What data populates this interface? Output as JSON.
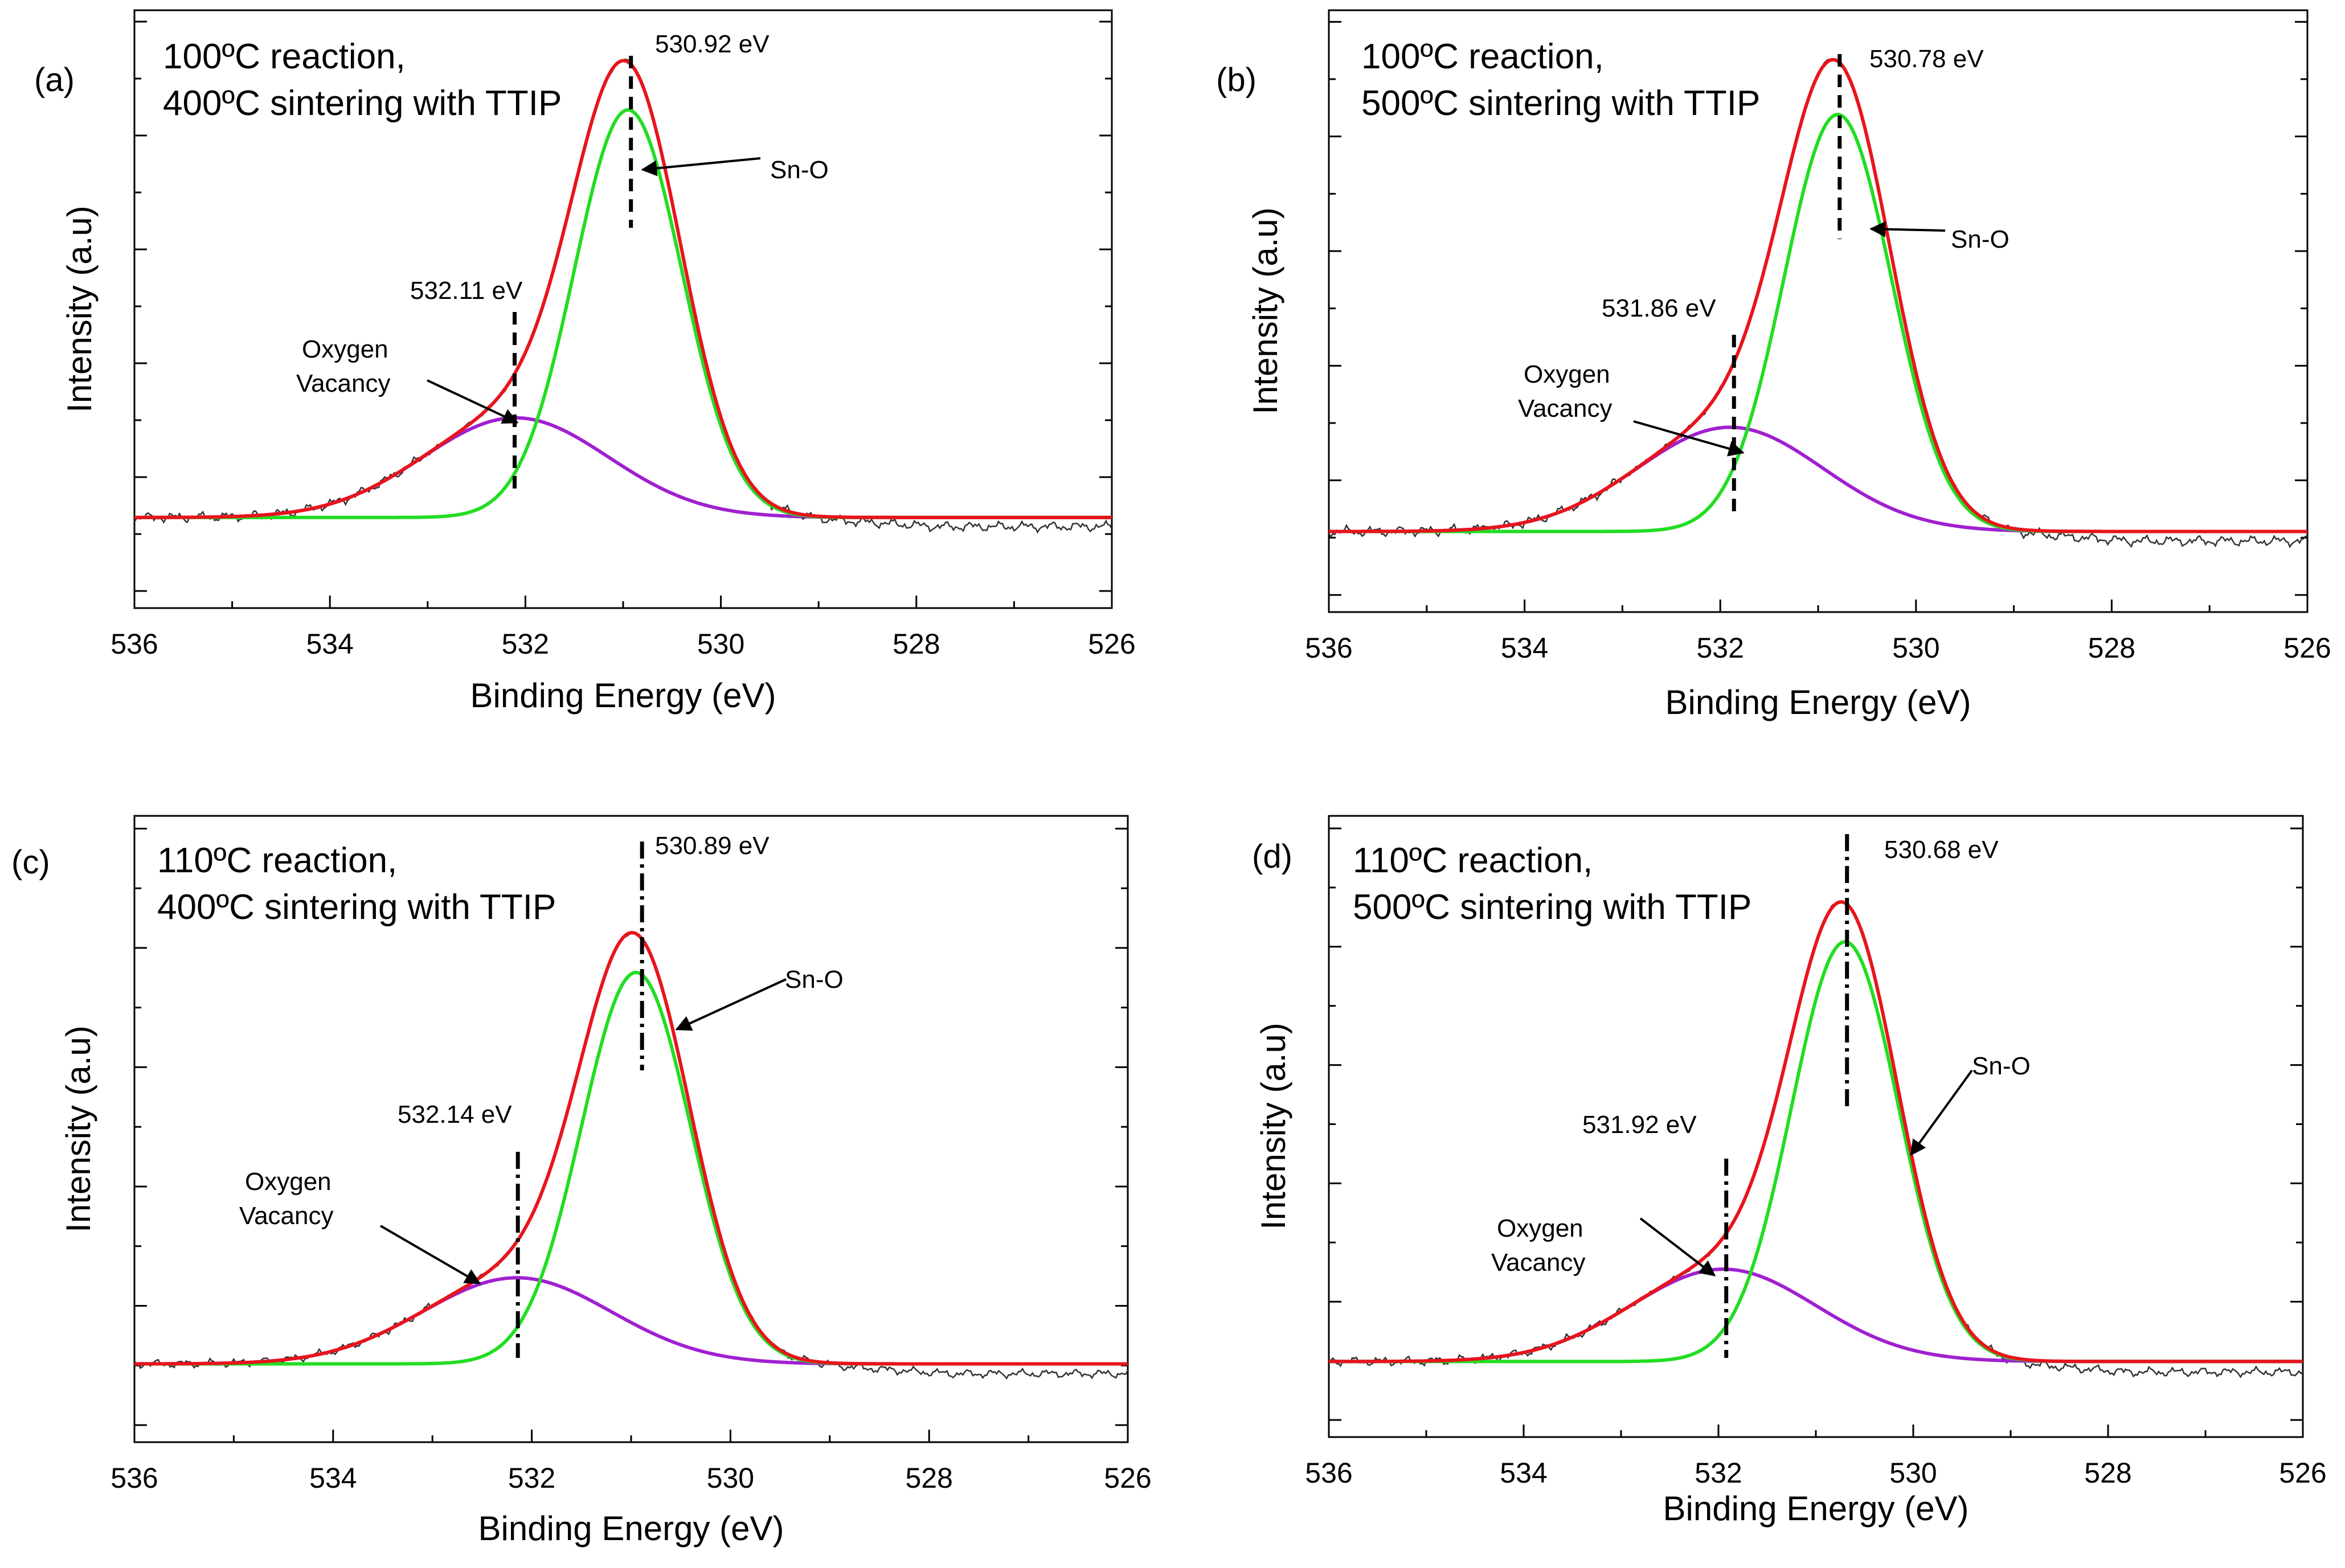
{
  "figure": {
    "colors": {
      "raw": "#333333",
      "envelope": "#e8141c",
      "sn_o": "#22dd22",
      "vacancy": "#a020d0",
      "marker": "#000000"
    }
  },
  "chart_data": [
    {
      "type": "line",
      "panel_label": "(a)",
      "condition_line1": "100ºC reaction,",
      "condition_line2": "400ºC sintering  with TTIP",
      "xlabel": "Binding Energy (eV)",
      "ylabel": "Intensity (a.u)",
      "xlim": [
        536,
        526
      ],
      "xticks": [
        "536",
        "534",
        "532",
        "530",
        "528",
        "526"
      ],
      "ylim": [
        -0.2,
        1.12
      ],
      "sn_o": {
        "label": "Sn-O",
        "center": 530.95,
        "amplitude": 0.9,
        "sigma": 0.55
      },
      "vacancy": {
        "label_line1": "Oxygen",
        "label_line2": "Vacancy",
        "center": 532.1,
        "amplitude": 0.22,
        "sigma": 0.95
      },
      "noise_tail": -0.02,
      "peak_marker": {
        "value": 530.92,
        "label": "530.92 eV",
        "style": "dashed"
      },
      "vacancy_marker": {
        "value": 532.11,
        "label": "532.11 eV",
        "style": "dashed"
      },
      "series": [
        {
          "name": "Raw data",
          "color": "#333333"
        },
        {
          "name": "Envelope fit",
          "color": "#e8141c"
        },
        {
          "name": "Sn-O",
          "color": "#22dd22"
        },
        {
          "name": "Oxygen Vacancy",
          "color": "#a020d0"
        }
      ]
    },
    {
      "type": "line",
      "panel_label": "(b)",
      "condition_line1": "100ºC reaction,",
      "condition_line2": "500ºC sintering  with TTIP",
      "xlabel": "Binding Energy (eV)",
      "ylabel": "Intensity (a.u)",
      "xlim": [
        536,
        526
      ],
      "xticks": [
        "536",
        "534",
        "532",
        "530",
        "528",
        "526"
      ],
      "ylim": [
        -0.17,
        1.1
      ],
      "sn_o": {
        "label": "Sn-O",
        "center": 530.8,
        "amplitude": 0.88,
        "sigma": 0.55
      },
      "vacancy": {
        "label_line1": "Oxygen",
        "label_line2": "Vacancy",
        "center": 531.9,
        "amplitude": 0.22,
        "sigma": 0.95
      },
      "noise_tail": -0.02,
      "peak_marker": {
        "value": 530.78,
        "label": "530.78 eV",
        "style": "dashed"
      },
      "vacancy_marker": {
        "value": 531.86,
        "label": "531.86 eV",
        "style": "dashed"
      },
      "series": [
        {
          "name": "Raw data",
          "color": "#333333"
        },
        {
          "name": "Envelope fit",
          "color": "#e8141c"
        },
        {
          "name": "Sn-O",
          "color": "#22dd22"
        },
        {
          "name": "Oxygen Vacancy",
          "color": "#a020d0"
        }
      ]
    },
    {
      "type": "line",
      "panel_label": "(c)",
      "condition_line1": "110ºC reaction,",
      "condition_line2": "400ºC sintering  with TTIP",
      "xlabel": "Binding Energy (eV)",
      "ylabel": "Intensity (a.u)",
      "xlim": [
        536,
        526
      ],
      "xticks": [
        "536",
        "534",
        "532",
        "530",
        "528",
        "526"
      ],
      "ylim": [
        -0.2,
        1.4
      ],
      "sn_o": {
        "label": "Sn-O",
        "center": 530.95,
        "amplitude": 1.0,
        "sigma": 0.55
      },
      "vacancy": {
        "label_line1": "Oxygen",
        "label_line2": "Vacancy",
        "center": 532.15,
        "amplitude": 0.22,
        "sigma": 0.95
      },
      "noise_tail": -0.025,
      "peak_marker": {
        "value": 530.89,
        "label": "530.89 eV",
        "style": "dashdot"
      },
      "vacancy_marker": {
        "value": 532.14,
        "label": "532.14 eV",
        "style": "dashdot"
      },
      "series": [
        {
          "name": "Raw data",
          "color": "#333333"
        },
        {
          "name": "Envelope fit",
          "color": "#e8141c"
        },
        {
          "name": "Sn-O",
          "color": "#22dd22"
        },
        {
          "name": "Oxygen Vacancy",
          "color": "#a020d0"
        }
      ]
    },
    {
      "type": "line",
      "panel_label": "(d)",
      "condition_line1": "110ºC reaction,",
      "condition_line2": "500ºC sintering  with TTIP",
      "xlabel": "Binding Energy (eV)",
      "ylabel": "Intensity (a.u)",
      "xlim": [
        536,
        526
      ],
      "xticks": [
        "536",
        "534",
        "532",
        "530",
        "528",
        "526"
      ],
      "ylim": [
        -0.18,
        1.3
      ],
      "sn_o": {
        "label": "Sn-O",
        "center": 530.7,
        "amplitude": 1.0,
        "sigma": 0.55
      },
      "vacancy": {
        "label_line1": "Oxygen",
        "label_line2": "Vacancy",
        "center": 531.95,
        "amplitude": 0.22,
        "sigma": 0.95
      },
      "noise_tail": -0.025,
      "peak_marker": {
        "value": 530.68,
        "label": "530.68 eV",
        "style": "dashdot"
      },
      "vacancy_marker": {
        "value": 531.92,
        "label": "531.92 eV",
        "style": "dashdot"
      },
      "series": [
        {
          "name": "Raw data",
          "color": "#333333"
        },
        {
          "name": "Envelope fit",
          "color": "#e8141c"
        },
        {
          "name": "Sn-O",
          "color": "#22dd22"
        },
        {
          "name": "Oxygen Vacancy",
          "color": "#a020d0"
        }
      ]
    }
  ]
}
